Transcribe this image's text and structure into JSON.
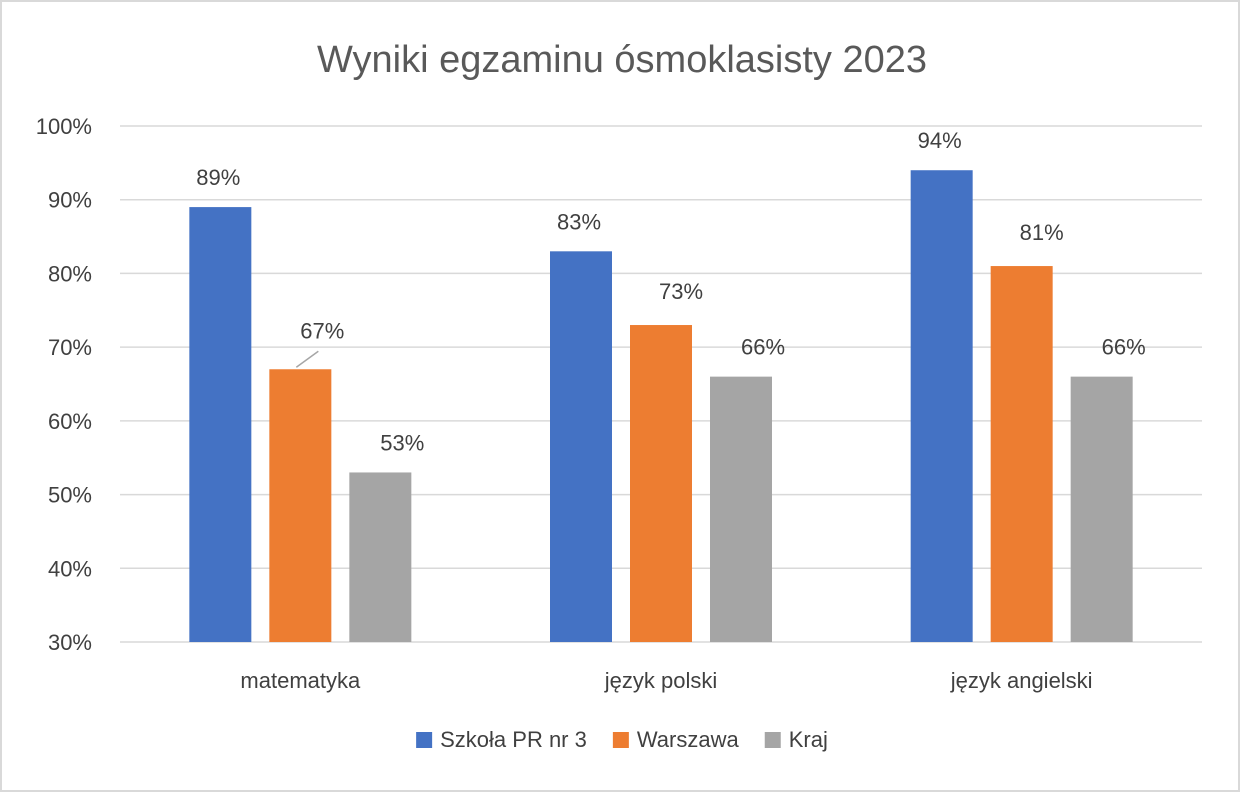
{
  "chart_data": {
    "type": "bar",
    "title": "Wyniki egzaminu ósmoklasisty 2023",
    "categories": [
      "matematyka",
      "język polski",
      "język angielski"
    ],
    "series": [
      {
        "name": "Szkoła PR nr 3",
        "values": [
          89,
          83,
          94
        ],
        "color": "#4472C4"
      },
      {
        "name": "Warszawa",
        "values": [
          67,
          73,
          81
        ],
        "color": "#ED7D31"
      },
      {
        "name": "Kraj",
        "values": [
          53,
          66,
          66
        ],
        "color": "#A5A5A5"
      }
    ],
    "data_labels": [
      [
        "89%",
        "83%",
        "94%"
      ],
      [
        "67%",
        "73%",
        "81%"
      ],
      [
        "53%",
        "66%",
        "66%"
      ]
    ],
    "ylim": [
      30,
      100
    ],
    "yticks": [
      30,
      40,
      50,
      60,
      70,
      80,
      90,
      100
    ],
    "ytick_labels": [
      "30%",
      "40%",
      "50%",
      "60%",
      "70%",
      "80%",
      "90%",
      "100%"
    ],
    "xlabel": "",
    "ylabel": "",
    "grid": true,
    "legend_position": "bottom"
  }
}
